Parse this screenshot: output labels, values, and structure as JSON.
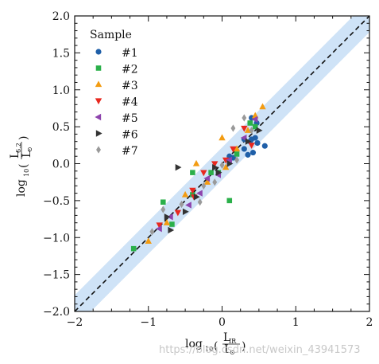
{
  "watermark": "https://blog.csdn.net/weixin_43941573",
  "chart_data": {
    "type": "scatter",
    "xlim": [
      -2,
      2
    ],
    "ylim": [
      -2,
      2
    ],
    "x_ticks": [
      -2,
      -1,
      0,
      1,
      2
    ],
    "y_ticks": [
      -2.0,
      -1.5,
      -1.0,
      -0.5,
      0.0,
      0.5,
      1.0,
      1.5,
      2.0
    ],
    "x_tick_labels": [
      "−2",
      "−1",
      "0",
      "1",
      "2"
    ],
    "y_tick_labels": [
      "−2.0",
      "−1.5",
      "−1.0",
      "−0.5",
      "0.0",
      "0.5",
      "1.0",
      "1.5",
      "2.0"
    ],
    "xlabel": {
      "prefix": "log",
      "sub": "10",
      "num_main": "L",
      "num_sub": "IR",
      "den_main": "L",
      "den_sub": "⊙"
    },
    "ylabel": {
      "prefix": "log",
      "sub": "10",
      "num_main": "L",
      "num_sub": "6.2",
      "den_main": "L",
      "den_sub": "⊙"
    },
    "one_to_one_line": {
      "style": "dashed",
      "color": "#111111"
    },
    "scatter_band": {
      "half_width_dex": 0.22,
      "color": "#cfe3f7"
    },
    "legend": {
      "title": "Sample",
      "placement": "upper-left"
    },
    "series": [
      {
        "name": "#1",
        "marker": "circle",
        "color": "#1f5fa8",
        "points": [
          [
            0.3,
            0.33
          ],
          [
            0.38,
            0.3
          ],
          [
            0.4,
            0.33
          ],
          [
            0.45,
            0.35
          ],
          [
            0.48,
            0.28
          ],
          [
            0.58,
            0.24
          ],
          [
            0.42,
            0.15
          ],
          [
            0.35,
            0.12
          ],
          [
            0.3,
            0.2
          ],
          [
            0.4,
            0.62
          ],
          [
            0.47,
            0.55
          ],
          [
            0.15,
            0.08
          ],
          [
            0.1,
            0.1
          ]
        ]
      },
      {
        "name": "#2",
        "marker": "square",
        "color": "#2bb04a",
        "points": [
          [
            -1.2,
            -1.15
          ],
          [
            -0.8,
            -0.52
          ],
          [
            -0.68,
            -0.82
          ],
          [
            -0.4,
            -0.12
          ],
          [
            -0.4,
            -0.42
          ],
          [
            -0.15,
            -0.12
          ],
          [
            -0.05,
            -0.12
          ],
          [
            0.1,
            -0.5
          ],
          [
            0.2,
            0.13
          ],
          [
            0.38,
            0.55
          ],
          [
            0.45,
            0.5
          ]
        ]
      },
      {
        "name": "#3",
        "marker": "triangle-up",
        "color": "#f39c12",
        "points": [
          [
            -1.0,
            -1.05
          ],
          [
            -0.75,
            -0.8
          ],
          [
            -0.5,
            -0.42
          ],
          [
            -0.35,
            0.0
          ],
          [
            -0.2,
            -0.25
          ],
          [
            0.0,
            0.35
          ],
          [
            0.2,
            0.2
          ],
          [
            0.35,
            0.45
          ],
          [
            0.45,
            0.65
          ],
          [
            0.55,
            0.77
          ],
          [
            0.05,
            -0.05
          ]
        ]
      },
      {
        "name": "#4",
        "marker": "triangle-down",
        "color": "#e8281f",
        "points": [
          [
            -0.85,
            -0.83
          ],
          [
            -0.6,
            -0.66
          ],
          [
            -0.4,
            -0.36
          ],
          [
            -0.25,
            -0.12
          ],
          [
            -0.1,
            0.0
          ],
          [
            0.05,
            0.05
          ],
          [
            -0.38,
            -0.45
          ],
          [
            0.15,
            0.2
          ],
          [
            0.4,
            0.25
          ],
          [
            0.3,
            0.48
          ]
        ]
      },
      {
        "name": "#5",
        "marker": "triangle-left",
        "color": "#8e44ad",
        "points": [
          [
            -0.85,
            -0.88
          ],
          [
            -0.7,
            -0.72
          ],
          [
            -0.45,
            -0.56
          ],
          [
            -0.3,
            -0.4
          ],
          [
            -0.2,
            -0.2
          ],
          [
            -0.05,
            -0.15
          ],
          [
            0.1,
            0.05
          ],
          [
            0.3,
            0.35
          ],
          [
            0.45,
            0.6
          ]
        ]
      },
      {
        "name": "#6",
        "marker": "triangle-right",
        "color": "#333333",
        "points": [
          [
            -0.6,
            -0.05
          ],
          [
            -0.75,
            -0.72
          ],
          [
            -0.5,
            -0.65
          ],
          [
            -0.35,
            -0.45
          ],
          [
            -0.1,
            -0.05
          ],
          [
            -0.05,
            -0.12
          ],
          [
            0.1,
            0.0
          ],
          [
            0.35,
            0.3
          ],
          [
            0.5,
            0.45
          ],
          [
            -0.7,
            -0.9
          ]
        ]
      },
      {
        "name": "#7",
        "marker": "diamond",
        "color": "#9a9a9a",
        "points": [
          [
            -0.95,
            -0.92
          ],
          [
            -0.8,
            -0.62
          ],
          [
            -0.55,
            -0.55
          ],
          [
            -0.3,
            -0.52
          ],
          [
            -0.25,
            -0.3
          ],
          [
            -0.1,
            -0.25
          ],
          [
            0.0,
            -0.02
          ],
          [
            0.15,
            0.48
          ],
          [
            0.3,
            0.62
          ],
          [
            0.4,
            0.45
          ],
          [
            0.2,
            0.05
          ]
        ]
      }
    ]
  }
}
